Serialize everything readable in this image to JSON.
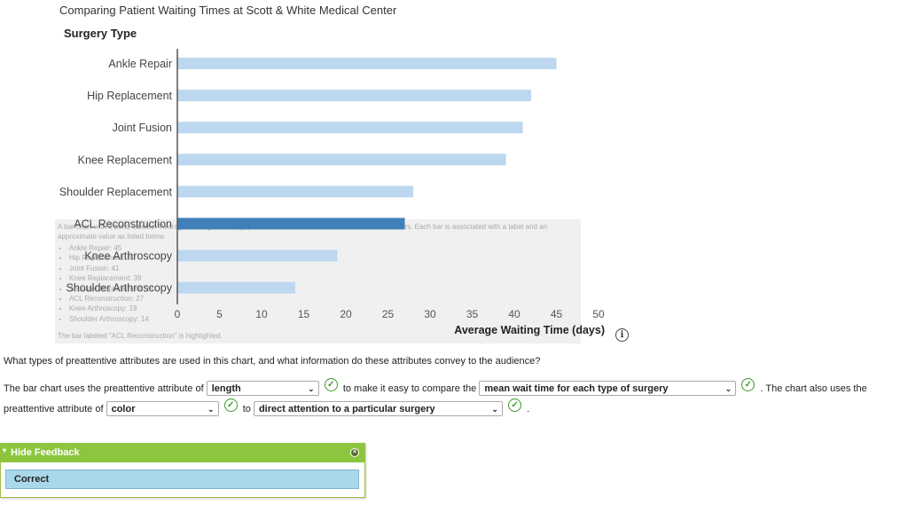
{
  "chart_data": {
    "type": "bar",
    "orientation": "horizontal",
    "title": "Comparing Patient Waiting Times at Scott & White Medical Center",
    "ylabel": "Surgery Type",
    "xlabel": "Average Waiting Time (days)",
    "categories": [
      "Ankle Repair",
      "Hip Replacement",
      "Joint Fusion",
      "Knee Replacement",
      "Shoulder Replacement",
      "ACL Reconstruction",
      "Knee Arthroscopy",
      "Shoulder Arthroscopy"
    ],
    "values": [
      45,
      42,
      41,
      39,
      28,
      27,
      19,
      14
    ],
    "highlighted": "ACL Reconstruction",
    "xlim": [
      0,
      50
    ],
    "xticks": [
      0,
      5,
      10,
      15,
      20,
      25,
      30,
      35,
      40,
      45,
      50
    ],
    "grid": false,
    "colors": {
      "bar": "#bcd7ef",
      "highlight": "#3f80b8",
      "axis": "#555555"
    }
  },
  "alt_text": {
    "line1": "A bar chart with 8 bars, labeled \"Average Waiting Time (days)\" with values from 0 to 50. The bar chart has 8 bars. Each bar is associated with a label and an approximate value as listed below.",
    "items": [
      "Ankle Repair: 45",
      "Hip Replacement: 42",
      "Joint Fusion: 41",
      "Knee Replacement: 39",
      "Shoulder Replacement: 28",
      "ACL Reconstruction: 27",
      "Knee Arthroscopy: 19",
      "Shoulder Arthroscopy: 14"
    ],
    "footer": "The bar labeled \"ACL Reconstruction\" is highlighted."
  },
  "info_icon": {
    "glyph": "i",
    "icon": "info-icon"
  },
  "question": "What types of preattentive attributes are used in this chart, and what information do these attributes convey to the audience?",
  "answer": {
    "t1": "The bar chart uses the preattentive attribute of",
    "sel1": "length",
    "t2": "to make it easy to compare the",
    "sel2": "mean wait time for each type of surgery",
    "t3": ". The chart also uses the",
    "t4": "preattentive attribute of",
    "sel3": "color",
    "t5": "to",
    "sel4": "direct attention to a particular surgery",
    "t6": ".",
    "check_glyph": "✓",
    "arrow_glyph": "⌄"
  },
  "feedback": {
    "toggle_label": "Hide Feedback",
    "toggle_glyph": "▾",
    "close_glyph": "×",
    "result": "Correct",
    "header_color": "#8cc63f",
    "body_color": "#a8d8ea"
  }
}
